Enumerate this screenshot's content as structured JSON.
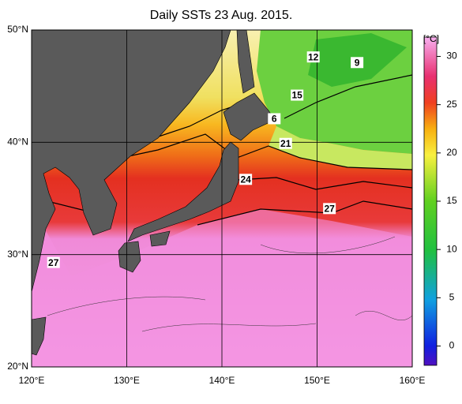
{
  "title": "Daily SSTs 23 Aug. 2015.",
  "map": {
    "xlim": [
      120,
      160
    ],
    "ylim": [
      20,
      50
    ],
    "xticks": [
      {
        "value": 120,
        "label": "120°E"
      },
      {
        "value": 130,
        "label": "130°E"
      },
      {
        "value": 140,
        "label": "140°E"
      },
      {
        "value": 150,
        "label": "150°E"
      },
      {
        "value": 160,
        "label": "160°E"
      }
    ],
    "yticks": [
      {
        "value": 20,
        "label": "20°N"
      },
      {
        "value": 30,
        "label": "30°N"
      },
      {
        "value": 40,
        "label": "40°N"
      },
      {
        "value": 50,
        "label": "50°N"
      }
    ],
    "contour_labels": [
      {
        "value": 12,
        "lon": 149.6,
        "lat": 47.6
      },
      {
        "value": 9,
        "lon": 154.2,
        "lat": 47.1
      },
      {
        "value": 15,
        "lon": 147.9,
        "lat": 44.2
      },
      {
        "value": 6,
        "lon": 145.5,
        "lat": 42.1
      },
      {
        "value": 21,
        "lon": 146.7,
        "lat": 39.9
      },
      {
        "value": 24,
        "lon": 142.5,
        "lat": 36.7
      },
      {
        "value": 27,
        "lon": 151.3,
        "lat": 34.1
      },
      {
        "value": 27,
        "lon": 122.3,
        "lat": 29.3
      }
    ]
  },
  "colorbar": {
    "unit": "[°C]",
    "lim": [
      -2,
      32
    ],
    "ticks": [
      0,
      5,
      10,
      15,
      20,
      25,
      30
    ]
  }
}
